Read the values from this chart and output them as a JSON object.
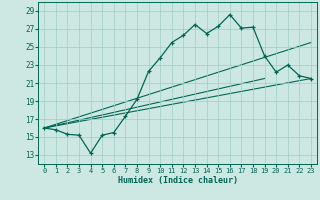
{
  "title": "",
  "xlabel": "Humidex (Indice chaleur)",
  "bg_color": "#cde8e2",
  "grid_color": "#9ecec6",
  "line_color": "#006655",
  "xlim": [
    -0.5,
    23.5
  ],
  "ylim": [
    12.0,
    30.0
  ],
  "yticks": [
    13,
    15,
    17,
    19,
    21,
    23,
    25,
    27,
    29
  ],
  "xticks": [
    0,
    1,
    2,
    3,
    4,
    5,
    6,
    7,
    8,
    9,
    10,
    11,
    12,
    13,
    14,
    15,
    16,
    17,
    18,
    19,
    20,
    21,
    22,
    23
  ],
  "main_y": [
    16.0,
    15.8,
    15.3,
    15.2,
    13.2,
    15.2,
    15.5,
    17.3,
    19.2,
    22.3,
    23.8,
    25.5,
    26.3,
    27.5,
    26.5,
    27.3,
    28.6,
    27.1,
    27.2,
    24.0,
    22.2,
    23.0,
    21.8,
    21.5
  ],
  "trend_lines": [
    {
      "x0": 0,
      "y0": 16.0,
      "x1": 23,
      "y1": 21.5
    },
    {
      "x0": 0,
      "y0": 16.0,
      "x1": 23,
      "y1": 25.5
    },
    {
      "x0": 0,
      "y0": 16.0,
      "x1": 19,
      "y1": 21.5
    }
  ]
}
